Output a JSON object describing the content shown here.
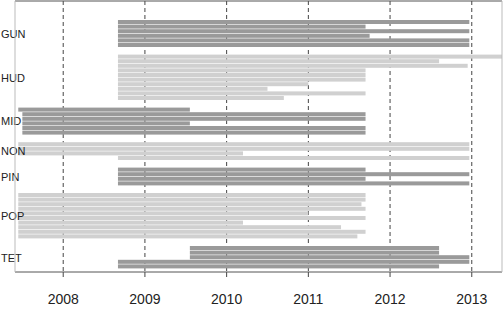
{
  "chart_data": {
    "type": "gantt",
    "xlim": [
      2007.41,
      2013.37
    ],
    "xticks": [
      2008,
      2009,
      2010,
      2011,
      2012,
      2013
    ],
    "grid": true,
    "series": [
      {
        "name": "GUN",
        "color": "#9a9a9a",
        "values": [
          [
            2008.67,
            2012.97
          ],
          [
            2008.67,
            2011.7
          ],
          [
            2008.67,
            2012.97
          ],
          [
            2008.67,
            2011.75
          ],
          [
            2008.67,
            2012.97
          ],
          [
            2008.67,
            2012.97
          ]
        ]
      },
      {
        "name": "HUD",
        "color": "#d0d0d0",
        "values": [
          [
            2008.67,
            2013.37
          ],
          [
            2008.67,
            2012.6
          ],
          [
            2008.67,
            2012.95
          ],
          [
            2008.67,
            2011.7
          ],
          [
            2008.67,
            2011.7
          ],
          [
            2008.67,
            2011.7
          ],
          [
            2008.67,
            2011.0
          ],
          [
            2008.67,
            2010.5
          ],
          [
            2008.67,
            2011.7
          ],
          [
            2008.67,
            2010.7
          ]
        ]
      },
      {
        "name": "MID",
        "color": "#9a9a9a",
        "values": [
          [
            2007.45,
            2009.55
          ],
          [
            2007.5,
            2011.7
          ],
          [
            2007.5,
            2011.7
          ],
          [
            2007.5,
            2009.55
          ],
          [
            2007.5,
            2011.7
          ],
          [
            2007.5,
            2011.7
          ]
        ]
      },
      {
        "name": "NON",
        "color": "#d0d0d0",
        "values": [
          [
            2007.45,
            2012.97
          ],
          [
            2007.45,
            2012.97
          ],
          [
            2007.45,
            2010.2
          ],
          [
            2008.67,
            2012.97
          ]
        ]
      },
      {
        "name": "PIN",
        "color": "#9a9a9a",
        "values": [
          [
            2008.67,
            2011.7
          ],
          [
            2008.67,
            2012.97
          ],
          [
            2008.67,
            2011.7
          ],
          [
            2008.67,
            2012.97
          ]
        ]
      },
      {
        "name": "POP",
        "color": "#d0d0d0",
        "values": [
          [
            2007.45,
            2011.7
          ],
          [
            2007.45,
            2011.7
          ],
          [
            2007.45,
            2011.65
          ],
          [
            2007.45,
            2011.7
          ],
          [
            2007.45,
            2011.0
          ],
          [
            2007.45,
            2011.7
          ],
          [
            2007.45,
            2010.2
          ],
          [
            2007.45,
            2011.4
          ],
          [
            2007.45,
            2011.7
          ],
          [
            2007.45,
            2011.6
          ]
        ]
      },
      {
        "name": "TET",
        "color": "#9a9a9a",
        "values": [
          [
            2009.55,
            2012.6
          ],
          [
            2009.55,
            2012.6
          ],
          [
            2009.55,
            2012.97
          ],
          [
            2008.67,
            2012.97
          ],
          [
            2008.67,
            2012.6
          ]
        ]
      }
    ]
  }
}
